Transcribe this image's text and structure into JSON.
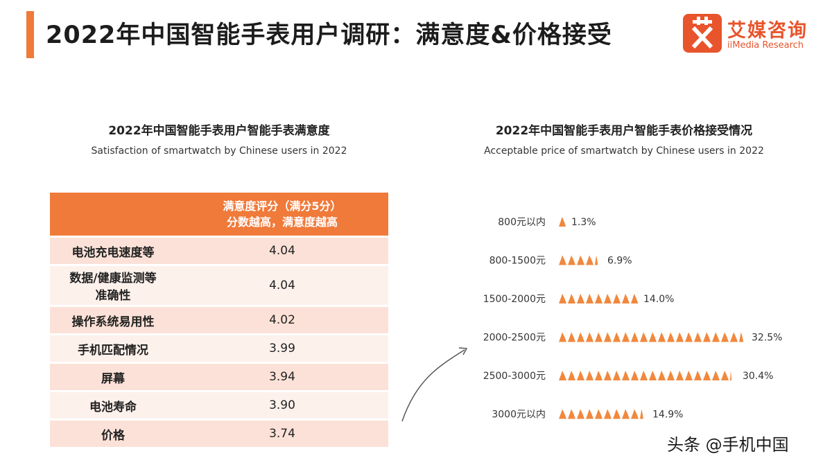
{
  "header": {
    "title": "2022年中国智能手表用户调研：满意度&价格接受",
    "logo_cn": "艾媒咨询",
    "logo_en": "iiMedia Research"
  },
  "left_panel": {
    "title": "2022年中国智能手表用户智能手表满意度",
    "subtitle": "Satisfaction of smartwatch by Chinese users in 2022"
  },
  "right_panel": {
    "title": "2022年中国智能手表用户智能手表价格接受情况",
    "subtitle": "Acceptable price of smartwatch by Chinese users in 2022"
  },
  "satisfaction_table": {
    "header_line1": "满意度评分（满分5分）",
    "header_line2": "分数越高，满意度越高",
    "rows": [
      {
        "item": "电池充电速度等",
        "score": "4.04"
      },
      {
        "item_line1": "数据/健康监测等",
        "item_line2": "准确性",
        "score": "4.04"
      },
      {
        "item": "操作系统易用性",
        "score": "4.02"
      },
      {
        "item": "手机匹配情况",
        "score": "3.99"
      },
      {
        "item": "屏幕",
        "score": "3.94"
      },
      {
        "item": "电池寿命",
        "score": "3.90"
      },
      {
        "item": "价格",
        "score": "3.74"
      }
    ]
  },
  "chart_data": [
    {
      "type": "table",
      "title": "2022年中国智能手表用户智能手表满意度",
      "subtitle": "Satisfaction of smartwatch by Chinese users in 2022",
      "columns": [
        "",
        "满意度评分（满分5分） 分数越高，满意度越高"
      ],
      "categories": [
        "电池充电速度等",
        "数据/健康监测等准确性",
        "操作系统易用性",
        "手机匹配情况",
        "屏幕",
        "电池寿命",
        "价格"
      ],
      "values": [
        4.04,
        4.04,
        4.02,
        3.99,
        3.94,
        3.9,
        3.74
      ]
    },
    {
      "type": "bar",
      "orientation": "horizontal",
      "style": "pictogram",
      "title": "2022年中国智能手表用户智能手表价格接受情况",
      "subtitle": "Acceptable price of smartwatch by Chinese users in 2022",
      "categories": [
        "800元以内",
        "800-1500元",
        "1500-2000元",
        "2000-2500元",
        "2500-3000元",
        "3000元以内"
      ],
      "values": [
        1.3,
        6.9,
        14.0,
        32.5,
        30.4,
        14.9
      ],
      "value_labels": [
        "1.3%",
        "6.9%",
        "14.0%",
        "32.5%",
        "30.4%",
        "14.9%"
      ],
      "unit": "%",
      "xlim": [
        0,
        35
      ],
      "color": "#f0883e"
    }
  ],
  "colors": {
    "accent": "#f07a3a",
    "row_dark": "#fbe1d7",
    "row_light": "#fdf1ec",
    "icon_fill": "#f0883e"
  },
  "watermark": "头条 @手机中国"
}
